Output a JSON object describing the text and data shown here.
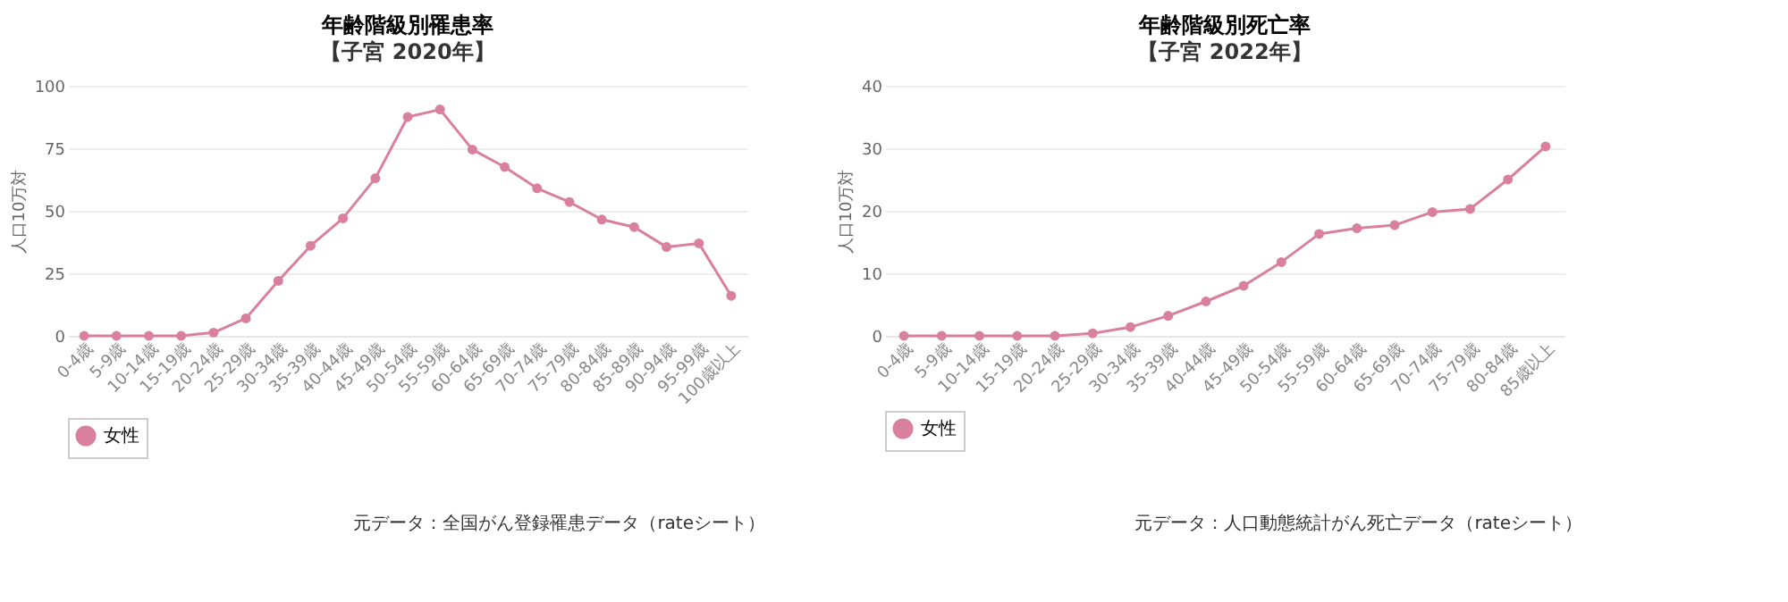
{
  "chart_data": [
    {
      "type": "line",
      "title": "年齢階級別罹患率",
      "subtitle": "【子宮 2020年】",
      "ylabel": "人口10万対",
      "categories": [
        "0-4歳",
        "5-9歳",
        "10-14歳",
        "15-19歳",
        "20-24歳",
        "25-29歳",
        "30-34歳",
        "35-39歳",
        "40-44歳",
        "45-49歳",
        "50-54歳",
        "55-59歳",
        "60-64歳",
        "65-69歳",
        "70-74歳",
        "75-79歳",
        "80-84歳",
        "85-89歳",
        "90-94歳",
        "95-99歳",
        "100歳以上"
      ],
      "series": [
        {
          "name": "女性",
          "color": "#d9809f",
          "values": [
            0,
            0,
            0,
            0,
            1.3,
            7,
            22,
            36,
            47,
            63,
            87.5,
            90.5,
            74.5,
            67.5,
            59,
            53.5,
            46.5,
            43.5,
            35.5,
            37,
            16
          ]
        }
      ],
      "ylim": [
        0,
        100
      ],
      "yticks": [
        0,
        25,
        50,
        75,
        100
      ],
      "grid": "y",
      "legend": "bottom",
      "marker": "circle",
      "line_style": "solid",
      "annotations": [
        "元データ：全国がん登録罹患データ（rateシート）"
      ]
    },
    {
      "type": "line",
      "title": "年齢階級別死亡率",
      "subtitle": "【子宮 2022年】",
      "ylabel": "人口10万対",
      "categories": [
        "0-4歳",
        "5-9歳",
        "10-14歳",
        "15-19歳",
        "20-24歳",
        "25-29歳",
        "30-34歳",
        "35-39歳",
        "40-44歳",
        "45-49歳",
        "50-54歳",
        "55-59歳",
        "60-64歳",
        "65-69歳",
        "70-74歳",
        "75-79歳",
        "80-84歳",
        "85歳以上"
      ],
      "series": [
        {
          "name": "女性",
          "color": "#d9809f",
          "values": [
            0,
            0,
            0,
            0,
            0,
            0.4,
            1.4,
            3.2,
            5.5,
            8,
            11.8,
            16.3,
            17.2,
            17.7,
            19.8,
            20.3,
            25,
            30.3
          ]
        }
      ],
      "ylim": [
        0,
        40
      ],
      "yticks": [
        0,
        10,
        20,
        30,
        40
      ],
      "grid": "y",
      "legend": "bottom",
      "marker": "circle",
      "line_style": "solid",
      "annotations": [
        "元データ：人口動態統計がん死亡データ（rateシート）"
      ]
    }
  ]
}
